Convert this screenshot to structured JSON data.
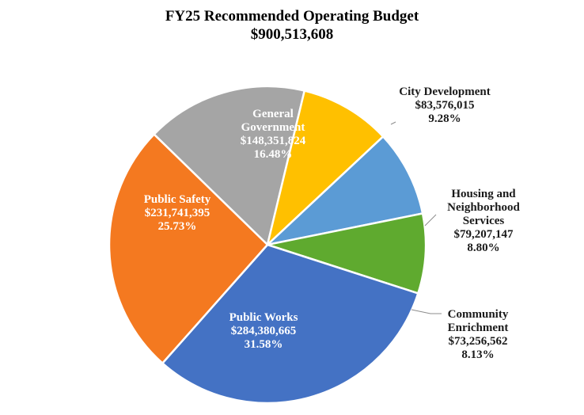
{
  "chart_data": {
    "type": "pie",
    "title": "FY25 Recommended Operating Budget",
    "subtitle": "$900,513,608",
    "slices": [
      {
        "name": "General Government",
        "label_lines": [
          "General",
          "Government"
        ],
        "amount": "$148,351,824",
        "percent": "16.48%",
        "value": 16.48,
        "color": "#A5A5A5",
        "label_position": "inside"
      },
      {
        "name": "City Development",
        "label_lines": [
          "City Development"
        ],
        "amount": "$83,576,015",
        "percent": "9.28%",
        "value": 9.28,
        "color": "#FFC000",
        "label_position": "outside"
      },
      {
        "name": "Housing and Neighborhood Services",
        "label_lines": [
          "Housing and",
          "Neighborhood",
          "Services"
        ],
        "amount": "$79,207,147",
        "percent": "8.80%",
        "value": 8.8,
        "color": "#5B9BD5",
        "label_position": "outside"
      },
      {
        "name": "Community Enrichment",
        "label_lines": [
          "Community",
          "Enrichment"
        ],
        "amount": "$73,256,562",
        "percent": "8.13%",
        "value": 8.13,
        "color": "#5FAA2F",
        "label_position": "outside"
      },
      {
        "name": "Public Works",
        "label_lines": [
          "Public Works"
        ],
        "amount": "$284,380,665",
        "percent": "31.58%",
        "value": 31.58,
        "color": "#4472C4",
        "label_position": "inside"
      },
      {
        "name": "Public Safety",
        "label_lines": [
          "Public Safety"
        ],
        "amount": "$231,741,395",
        "percent": "25.73%",
        "value": 25.73,
        "color": "#F47920",
        "label_position": "inside"
      }
    ],
    "legend": false
  }
}
